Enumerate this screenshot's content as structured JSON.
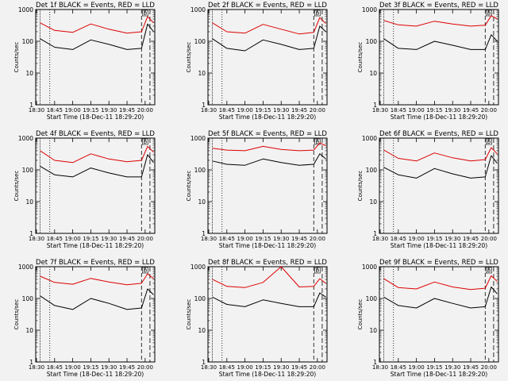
{
  "common": {
    "ylabel": "Counts/sec",
    "xlabel": "Start Time (18-Dec-11 18:29:20)",
    "x_ticks": [
      "18:30",
      "18:45",
      "19:00",
      "19:15",
      "19:30",
      "19:45",
      "20:00"
    ],
    "y_ticks": [
      "1",
      "10",
      "100",
      "1000"
    ],
    "ylim": [
      1,
      1000
    ],
    "y_scale": "log",
    "xlim": [
      "18:29:20",
      "20:08:00"
    ],
    "marker_label": "D",
    "events_color": "#000000",
    "lld_color": "#dd0000"
  },
  "chart_data": [
    {
      "type": "line",
      "title": "Det 1f BLACK = Events, RED = LLD",
      "x": [
        "18:33",
        "18:45",
        "19:00",
        "19:15",
        "19:30",
        "19:45",
        "19:57",
        "20:02",
        "20:07"
      ],
      "series": [
        {
          "values": [
            120,
            65,
            55,
            110,
            80,
            55,
            60,
            350,
            200
          ]
        },
        {
          "values": [
            380,
            220,
            190,
            350,
            240,
            180,
            200,
            600,
            380
          ]
        }
      ]
    },
    {
      "type": "line",
      "title": "Det 2f BLACK = Events, RED = LLD",
      "x": [
        "18:33",
        "18:45",
        "19:00",
        "19:15",
        "19:30",
        "19:45",
        "19:57",
        "20:02",
        "20:07"
      ],
      "series": [
        {
          "values": [
            120,
            60,
            50,
            110,
            80,
            55,
            60,
            300,
            200
          ]
        },
        {
          "values": [
            380,
            200,
            180,
            340,
            240,
            170,
            190,
            560,
            360
          ]
        }
      ]
    },
    {
      "type": "line",
      "title": "Det 3f BLACK = Events, RED = LLD",
      "x": [
        "18:33",
        "18:45",
        "19:00",
        "19:15",
        "19:30",
        "19:45",
        "19:57",
        "20:02",
        "20:07"
      ],
      "series": [
        {
          "values": [
            120,
            60,
            55,
            100,
            75,
            55,
            55,
            160,
            100
          ]
        },
        {
          "values": [
            450,
            330,
            300,
            430,
            350,
            300,
            320,
            640,
            500
          ]
        }
      ]
    },
    {
      "type": "line",
      "title": "Det 4f BLACK = Events, RED = LLD",
      "x": [
        "18:33",
        "18:45",
        "19:00",
        "19:15",
        "19:30",
        "19:45",
        "19:57",
        "20:02",
        "20:07"
      ],
      "series": [
        {
          "values": [
            130,
            70,
            60,
            115,
            80,
            60,
            60,
            300,
            170
          ]
        },
        {
          "values": [
            400,
            200,
            170,
            320,
            220,
            180,
            200,
            550,
            360
          ]
        }
      ]
    },
    {
      "type": "line",
      "title": "Det 5f BLACK = Events, RED = LLD",
      "x": [
        "18:33",
        "18:45",
        "19:00",
        "19:15",
        "19:30",
        "19:45",
        "19:57",
        "20:02",
        "20:07"
      ],
      "series": [
        {
          "values": [
            190,
            150,
            140,
            220,
            170,
            140,
            150,
            320,
            220
          ]
        },
        {
          "values": [
            480,
            420,
            400,
            550,
            440,
            400,
            420,
            700,
            580
          ]
        }
      ]
    },
    {
      "type": "line",
      "title": "Det 6f BLACK = Events, RED = LLD",
      "x": [
        "18:33",
        "18:45",
        "19:00",
        "19:15",
        "19:30",
        "19:45",
        "19:57",
        "20:02",
        "20:07"
      ],
      "series": [
        {
          "values": [
            120,
            70,
            55,
            110,
            75,
            55,
            60,
            280,
            160
          ]
        },
        {
          "values": [
            420,
            230,
            190,
            340,
            240,
            190,
            210,
            500,
            320
          ]
        }
      ]
    },
    {
      "type": "line",
      "title": "Det 7f BLACK = Events, RED = LLD",
      "x": [
        "18:33",
        "18:45",
        "19:00",
        "19:15",
        "19:30",
        "19:45",
        "19:57",
        "20:02",
        "20:07"
      ],
      "series": [
        {
          "values": [
            120,
            60,
            45,
            100,
            70,
            45,
            50,
            200,
            130
          ]
        },
        {
          "values": [
            500,
            320,
            280,
            430,
            330,
            270,
            300,
            600,
            420
          ]
        }
      ]
    },
    {
      "type": "line",
      "title": "Det 8f BLACK = Events, RED = LLD",
      "x": [
        "18:33",
        "18:45",
        "19:00",
        "19:15",
        "19:30",
        "19:45",
        "19:57",
        "20:02",
        "20:07"
      ],
      "series": [
        {
          "values": [
            110,
            65,
            55,
            90,
            70,
            55,
            55,
            150,
            110
          ]
        },
        {
          "values": [
            400,
            240,
            220,
            320,
            1000,
            230,
            240,
            420,
            300
          ]
        }
      ]
    },
    {
      "type": "line",
      "title": "Det 9f BLACK = Events, RED = LLD",
      "x": [
        "18:33",
        "18:45",
        "19:00",
        "19:15",
        "19:30",
        "19:45",
        "19:57",
        "20:02",
        "20:07"
      ],
      "series": [
        {
          "values": [
            110,
            60,
            50,
            100,
            70,
            50,
            55,
            230,
            140
          ]
        },
        {
          "values": [
            420,
            220,
            200,
            330,
            230,
            190,
            210,
            520,
            340
          ]
        }
      ]
    }
  ]
}
